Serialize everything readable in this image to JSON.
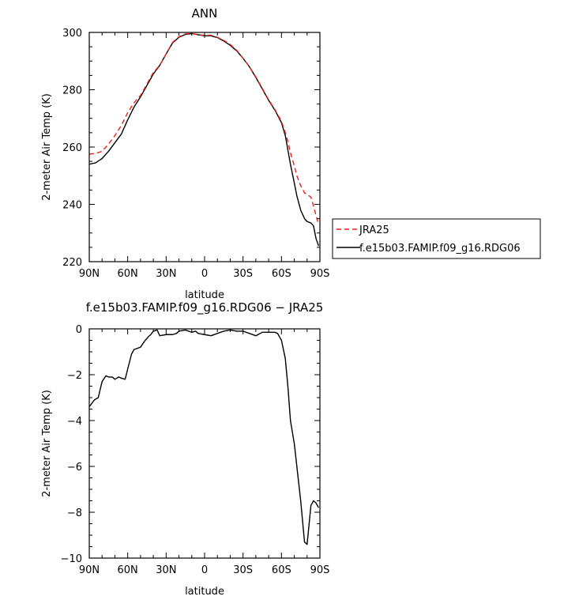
{
  "chart_data": [
    {
      "type": "line",
      "title": "ANN",
      "xlabel": "latitude",
      "ylabel": "2-meter Air Temp (K)",
      "xlim": [
        90,
        -90
      ],
      "ylim": [
        220,
        300
      ],
      "x_ticks": [
        {
          "value": 90,
          "label": "90N"
        },
        {
          "value": 60,
          "label": "60N"
        },
        {
          "value": 30,
          "label": "30N"
        },
        {
          "value": 0,
          "label": "0"
        },
        {
          "value": -30,
          "label": "30S"
        },
        {
          "value": -60,
          "label": "60S"
        },
        {
          "value": -90,
          "label": "90S"
        }
      ],
      "y_ticks": [
        220,
        240,
        260,
        280,
        300
      ],
      "legend_position": "right",
      "series": [
        {
          "name": "JRA25",
          "color": "#e8201a",
          "dash": "dashed",
          "x": [
            90,
            85,
            80,
            75,
            70,
            65,
            60,
            55,
            50,
            45,
            40,
            35,
            30,
            25,
            20,
            15,
            10,
            5,
            0,
            -5,
            -10,
            -15,
            -20,
            -25,
            -30,
            -35,
            -40,
            -45,
            -50,
            -55,
            -60,
            -63,
            -65,
            -67,
            -70,
            -72,
            -75,
            -78,
            -80,
            -83,
            -85,
            -87,
            -89
          ],
          "y": [
            257.5,
            257.8,
            258.5,
            261,
            264,
            267.5,
            272,
            275.5,
            278,
            282,
            286,
            288.5,
            292.5,
            296.5,
            298.5,
            299.5,
            299.6,
            299.2,
            299,
            299,
            298.3,
            297.2,
            295.8,
            293.8,
            291,
            288,
            284.5,
            280.5,
            276.5,
            273,
            269,
            265,
            262,
            258,
            253.5,
            250,
            246.5,
            244,
            243.5,
            242.5,
            239.5,
            236,
            233
          ]
        },
        {
          "name": "f.e15b03.FAMIP.f09_g16.RDG06",
          "color": "#000000",
          "dash": "solid",
          "x": [
            90,
            85,
            80,
            75,
            70,
            65,
            60,
            55,
            50,
            45,
            40,
            35,
            30,
            25,
            20,
            15,
            10,
            5,
            0,
            -5,
            -10,
            -15,
            -20,
            -25,
            -30,
            -35,
            -40,
            -45,
            -50,
            -55,
            -60,
            -63,
            -65,
            -67,
            -70,
            -72,
            -75,
            -78,
            -80,
            -83,
            -85,
            -87,
            -89
          ],
          "y": [
            254,
            254.5,
            256,
            258.5,
            261.5,
            264.5,
            269.5,
            274,
            277.5,
            281.5,
            285.5,
            288.5,
            292.5,
            296.3,
            298.3,
            299.3,
            299.6,
            299.2,
            298.8,
            298.8,
            298.2,
            297,
            295.5,
            293.6,
            291,
            288,
            284.3,
            280.3,
            276.3,
            272.8,
            268.5,
            264,
            259,
            254,
            247.5,
            243,
            238,
            235,
            234,
            233.5,
            232.5,
            228,
            225.5
          ]
        }
      ]
    },
    {
      "type": "line",
      "title": "f.e15b03.FAMIP.f09_g16.RDG06 − JRA25",
      "xlabel": "latitude",
      "ylabel": "2-meter Air Temp (K)",
      "xlim": [
        90,
        -90
      ],
      "ylim": [
        -10,
        0
      ],
      "x_ticks": [
        {
          "value": 90,
          "label": "90N"
        },
        {
          "value": 60,
          "label": "60N"
        },
        {
          "value": 30,
          "label": "30N"
        },
        {
          "value": 0,
          "label": "0"
        },
        {
          "value": -30,
          "label": "30S"
        },
        {
          "value": -60,
          "label": "60S"
        },
        {
          "value": -90,
          "label": "90S"
        }
      ],
      "y_ticks": [
        -10,
        -8,
        -6,
        -4,
        -2,
        0
      ],
      "series": [
        {
          "color": "#000000",
          "dash": "solid",
          "x": [
            90,
            86,
            83,
            80,
            77,
            75,
            72,
            70,
            67,
            65,
            62,
            60,
            57,
            55,
            50,
            47,
            44,
            42,
            40,
            37,
            35,
            30,
            25,
            22,
            20,
            15,
            10,
            7,
            5,
            0,
            -5,
            -10,
            -15,
            -20,
            -25,
            -30,
            -35,
            -40,
            -45,
            -50,
            -55,
            -57,
            -60,
            -63,
            -65,
            -67,
            -70,
            -73,
            -75,
            -78,
            -80,
            -83,
            -85,
            -87,
            -89
          ],
          "y": [
            -3.4,
            -3.1,
            -3.0,
            -2.3,
            -2.05,
            -2.1,
            -2.1,
            -2.2,
            -2.1,
            -2.15,
            -2.2,
            -1.75,
            -1.1,
            -0.9,
            -0.8,
            -0.55,
            -0.35,
            -0.25,
            -0.1,
            -0.05,
            -0.3,
            -0.25,
            -0.25,
            -0.2,
            -0.1,
            -0.05,
            -0.15,
            -0.1,
            -0.2,
            -0.25,
            -0.3,
            -0.2,
            -0.1,
            -0.05,
            -0.1,
            -0.1,
            -0.2,
            -0.3,
            -0.15,
            -0.15,
            -0.15,
            -0.2,
            -0.5,
            -1.3,
            -2.5,
            -4.0,
            -5.0,
            -6.5,
            -7.5,
            -9.3,
            -9.4,
            -7.7,
            -7.5,
            -7.6,
            -7.8
          ]
        }
      ]
    }
  ]
}
